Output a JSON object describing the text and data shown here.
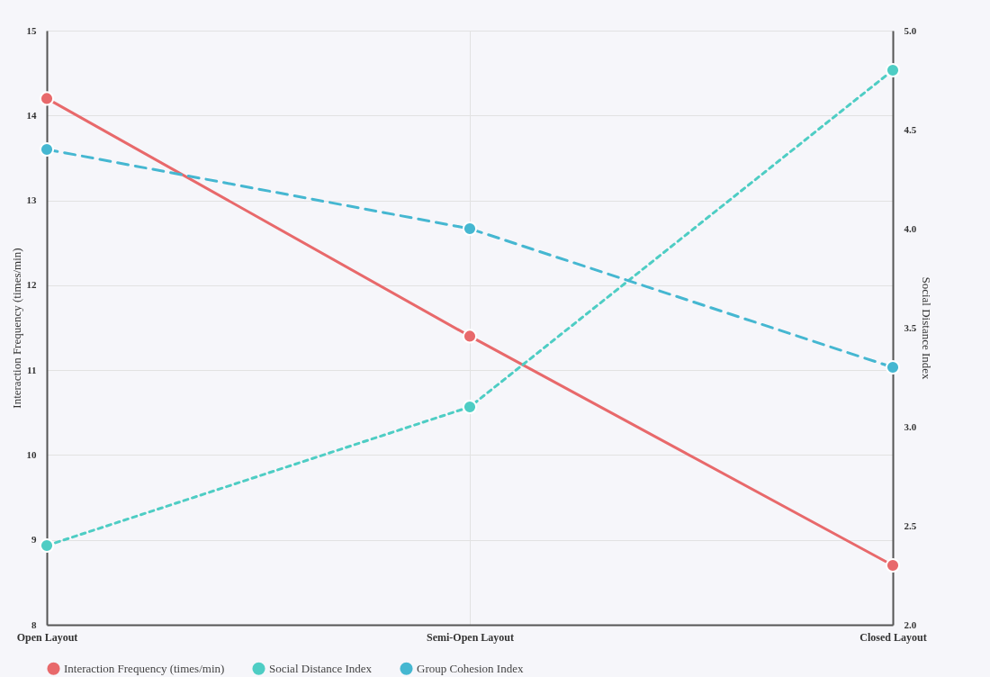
{
  "chart_data": {
    "type": "line",
    "xlabel": null,
    "ylabel": "Interaction Frequency (times/min)",
    "y2label": "Social Distance Index",
    "categories": [
      "Open Layout",
      "Semi-Open Layout",
      "Closed Layout"
    ],
    "series": [
      {
        "name": "Interaction Frequency (times/min)",
        "color": "#e8696b",
        "values": [
          14.2,
          11.4,
          8.7
        ],
        "line_style": "solid"
      },
      {
        "name": "Social Distance Index",
        "color": "#4ecdc4",
        "values": [
          2.4,
          3.1,
          4.8
        ],
        "axis": "y2",
        "line_style": "dotted"
      },
      {
        "name": "Group Cohesion Index",
        "color": "#45b7d1",
        "values": [
          4.4,
          4.0,
          3.3
        ],
        "axis": "y2",
        "line_style": "dashed"
      }
    ],
    "ylim": [
      8,
      15
    ],
    "yticks": [
      8,
      9,
      10,
      11,
      12,
      13,
      14,
      15
    ],
    "y2lim": [
      2,
      5
    ],
    "y2ticks": [
      {
        "value": 2,
        "label": "2.0"
      },
      {
        "value": 2.5,
        "label": "2.5"
      },
      {
        "value": 3,
        "label": "3.0"
      },
      {
        "value": 3.5,
        "label": "3.5"
      },
      {
        "value": 4,
        "label": "4.0"
      },
      {
        "value": 4.5,
        "label": "4.5"
      },
      {
        "value": 5,
        "label": "5.0"
      }
    ],
    "grid": true,
    "legend": "bottom",
    "marker": "circle"
  }
}
